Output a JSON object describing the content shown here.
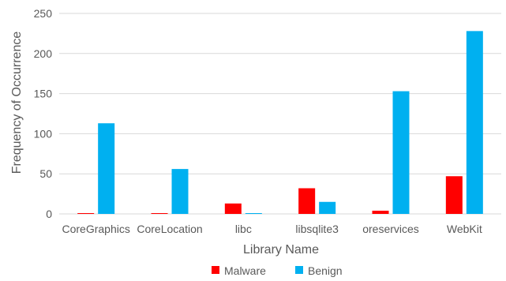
{
  "chart_data": {
    "type": "bar",
    "categories": [
      "CoreGraphics",
      "CoreLocation",
      "libc",
      "libsqlite3",
      "oreservices",
      "WebKit"
    ],
    "series": [
      {
        "name": "Malware",
        "color": "#ff0000",
        "values": [
          1,
          1,
          13,
          32,
          4,
          47
        ]
      },
      {
        "name": "Benign",
        "color": "#00b0f0",
        "values": [
          113,
          56,
          1,
          15,
          153,
          228
        ]
      }
    ],
    "xlabel": "Library Name",
    "ylabel": "Frequency of Occurrence",
    "ylim": [
      0,
      250
    ],
    "yticks": [
      0,
      50,
      100,
      150,
      200,
      250
    ],
    "grid": true,
    "legend_position": "bottom"
  }
}
